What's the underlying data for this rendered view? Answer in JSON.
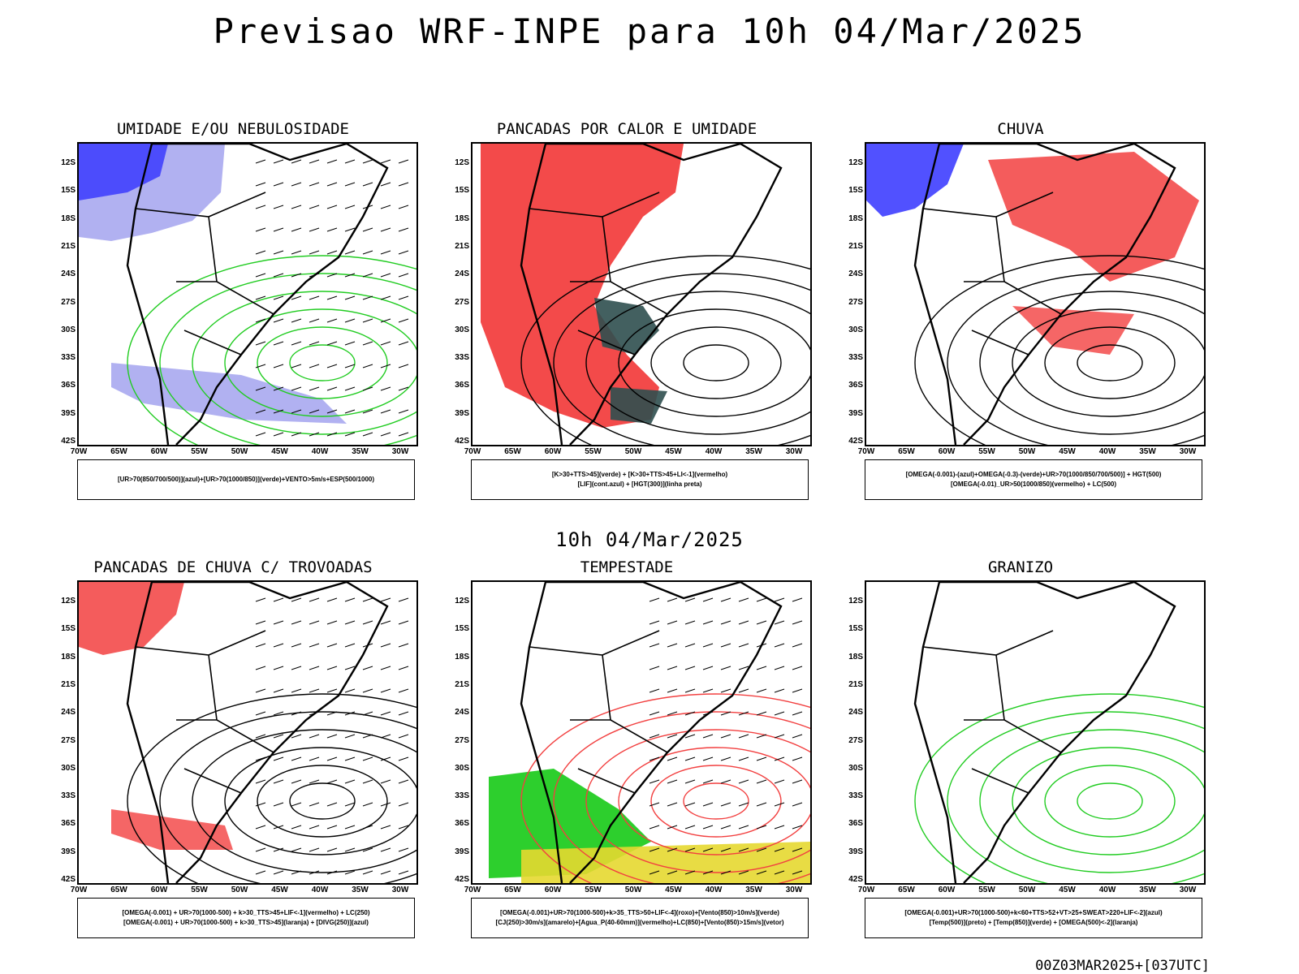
{
  "title": "Previsao WRF-INPE  para 10h 04/Mar/2025",
  "middle_date": "10h 04/Mar/2025",
  "footer": "00Z03MAR2025+[037UTC]",
  "lat_ticks": [
    "12S",
    "15S",
    "18S",
    "21S",
    "24S",
    "27S",
    "30S",
    "33S",
    "36S",
    "39S",
    "42S"
  ],
  "lon_ticks": [
    "70W",
    "65W",
    "60W",
    "55W",
    "50W",
    "45W",
    "40W",
    "35W",
    "30W"
  ],
  "panels": [
    {
      "title": "UMIDADE E/OU NEBULOSIDADE",
      "legend": [
        "[UR>70(850/700/500)](azul)+[UR>70(1000/850)](verde)+VENTO>5m/s+ESP(500/1000)"
      ]
    },
    {
      "title": "PANCADAS POR CALOR E UMIDADE",
      "legend": [
        "[K>30+TTS>45](verde) + [K>30+TTS>45+LI<-1](vermelho)",
        "[LIF](cont.azul) + [HGT(300)](linha preta)"
      ]
    },
    {
      "title": "CHUVA",
      "legend": [
        "[OMEGA(-0.001)-(azul)+OMEGA(-0.3)-(verde)+UR>70(1000/850/700/500)] + HGT(500)",
        "[OMEGA(-0.01)_UR>50(1000/850)(vermelho) + LC(500)"
      ]
    },
    {
      "title": "PANCADAS DE CHUVA C/ TROVOADAS",
      "legend": [
        "[OMEGA(-0.001) + UR>70(1000-500) + k>30_TTS>45+LIF<-1](vermelho) + LC(250)",
        "[OMEGA(-0.001) + UR>70(1000-500) + k>30_TTS>45](laranja) + [DIVG(250)](azul)"
      ]
    },
    {
      "title": "TEMPESTADE",
      "legend": [
        "[OMEGA(-0.001)+UR>70(1000-500)+k>35_TTS>50+LIF<-4](roxo)+[Vento(850)>10m/s](verde)",
        "[CJ(250)>30m/s](amarelo)+[Agua_P(40-60mm)](vermelho)+LC(850)+[Vento(850)>15m/s](vetor)"
      ]
    },
    {
      "title": "GRANIZO",
      "legend": [
        "[OMEGA(-0.001)+UR>70(1000-500)+k<60+TTS>52+VT>25+SWEAT>220+LIF<-2](azul)",
        "[Temp(500)](preto) + [Temp(850)](verde) + [OMEGA(500)<-2](laranja)"
      ]
    }
  ],
  "colors": {
    "blue": "#3333ff",
    "lightblue": "#a8a8f0",
    "green": "#22cc22",
    "red": "#f24040",
    "darkteal": "#2f4f4f",
    "yellow": "#e6d830",
    "orange": "#f08020"
  }
}
